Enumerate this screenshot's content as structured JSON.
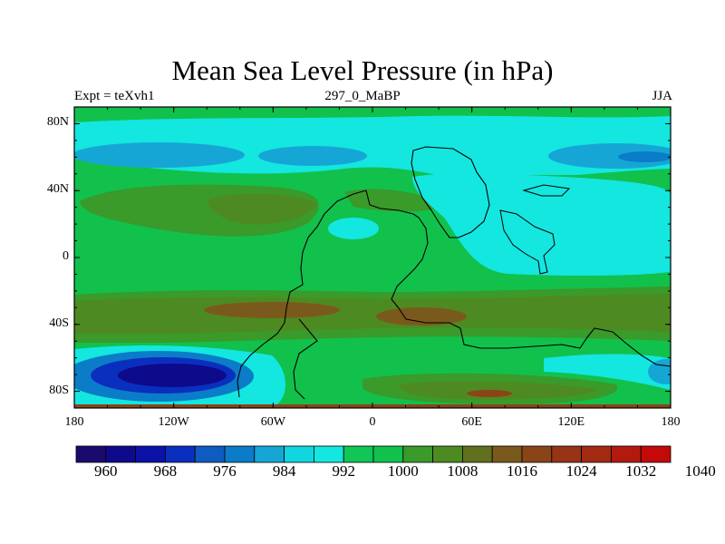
{
  "title": "Mean Sea Level Pressure (in hPa)",
  "left_subtitle": "Expt = teXvh1",
  "center_subtitle": "297_0_MaBP",
  "right_subtitle": "JJA",
  "y_ticks": [
    "80N",
    "40N",
    "0",
    "40S",
    "80S"
  ],
  "x_ticks": [
    "180",
    "120W",
    "60W",
    "0",
    "60E",
    "120E",
    "180"
  ],
  "colorbar": {
    "labels": [
      "960",
      "968",
      "976",
      "984",
      "992",
      "1000",
      "1008",
      "1016",
      "1024",
      "1032",
      "1040"
    ],
    "colors": [
      "#1a0a6e",
      "#0e0a8c",
      "#0a12a8",
      "#0a2fbe",
      "#0f5cc0",
      "#0b7cc8",
      "#16a6d6",
      "#10d6df",
      "#14e6e0",
      "#11c556",
      "#12c04c",
      "#3a9a2a",
      "#4e8a22",
      "#60701e",
      "#7a5a1c",
      "#8a4418",
      "#973416",
      "#a22a12",
      "#b21a10",
      "#c40a08"
    ]
  },
  "chart_data": {
    "type": "heatmap",
    "title": "Mean Sea Level Pressure (in hPa)",
    "units": "hPa",
    "x_range": [
      -180,
      180
    ],
    "y_range": [
      -90,
      90
    ],
    "levels": [
      960,
      964,
      968,
      972,
      976,
      980,
      984,
      988,
      992,
      996,
      1000,
      1004,
      1008,
      1012,
      1016,
      1020,
      1024,
      1028,
      1032,
      1036,
      1040
    ]
  }
}
